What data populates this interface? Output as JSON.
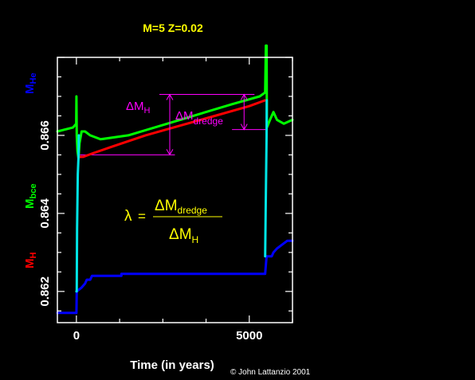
{
  "colors": {
    "background": "#000000",
    "axes": "#ffffff",
    "title": "#ffff00",
    "m_he": "#00ff00",
    "m_he_jump": "#00e5e5",
    "m_bce": "#ff0000",
    "m_h": "#0000ff",
    "annotation": "#ff00ff",
    "formula": "#ffff00"
  },
  "chart_data": {
    "type": "line",
    "title": "M=5 Z=0.02",
    "xlabel": "Time (in years)",
    "credit": "© John Lattanzio 2001",
    "xlim": [
      -550,
      6250
    ],
    "ylim": [
      0.8612,
      0.868
    ],
    "x_ticks": [
      0,
      5000
    ],
    "x_tick_labels": [
      "0",
      "5000"
    ],
    "y_ticks": [
      0.862,
      0.864,
      0.866
    ],
    "y_tick_labels": [
      "0.862",
      "0.864",
      "0.866"
    ],
    "ylabels": [
      {
        "main": "M",
        "sub": "He",
        "color": "#0000ff"
      },
      {
        "main": "M",
        "sub": "bce",
        "color": "#00ff00"
      },
      {
        "main": "M",
        "sub": "H",
        "color": "#ff0000"
      }
    ],
    "series": [
      {
        "color": "#00ff00",
        "points": [
          [
            -550,
            0.8661
          ],
          [
            -100,
            0.8662
          ],
          [
            -5,
            0.8663
          ],
          [
            0,
            0.867
          ],
          [
            10,
            0.866
          ],
          [
            30,
            0.8656
          ],
          [
            60,
            0.8654
          ],
          [
            90,
            0.8658
          ],
          [
            150,
            0.8661
          ],
          [
            250,
            0.8661
          ],
          [
            400,
            0.866
          ],
          [
            700,
            0.8659
          ],
          [
            1500,
            0.866
          ],
          [
            3000,
            0.8664
          ],
          [
            4500,
            0.8668
          ],
          [
            5300,
            0.867
          ],
          [
            5460,
            0.8671
          ],
          [
            5480,
            0.8683
          ],
          [
            5500,
            0.8683
          ],
          [
            5510,
            0.8662
          ],
          [
            5600,
            0.8664
          ],
          [
            5700,
            0.8666
          ],
          [
            5800,
            0.8664
          ],
          [
            6000,
            0.8663
          ],
          [
            6250,
            0.8664
          ]
        ]
      },
      {
        "color": "#ff0000",
        "points": [
          [
            60,
            0.86545
          ],
          [
            200,
            0.86545
          ],
          [
            500,
            0.86555
          ],
          [
            1000,
            0.8657
          ],
          [
            2000,
            0.866
          ],
          [
            3000,
            0.86625
          ],
          [
            4000,
            0.8665
          ],
          [
            5000,
            0.86675
          ],
          [
            5460,
            0.8669
          ]
        ]
      },
      {
        "color": "#0000ff",
        "points": [
          [
            -550,
            0.86145
          ],
          [
            -50,
            0.86145
          ],
          [
            0,
            0.86145
          ],
          [
            10,
            0.862
          ],
          [
            150,
            0.8621
          ],
          [
            250,
            0.8622
          ],
          [
            300,
            0.8623
          ],
          [
            400,
            0.8623
          ],
          [
            450,
            0.8624
          ],
          [
            1300,
            0.8624
          ],
          [
            1300,
            0.86245
          ],
          [
            5460,
            0.86245
          ],
          [
            5500,
            0.8629
          ],
          [
            5650,
            0.8629
          ],
          [
            5700,
            0.863
          ],
          [
            5800,
            0.8631
          ],
          [
            5950,
            0.8632
          ],
          [
            6100,
            0.8633
          ],
          [
            6250,
            0.8633
          ]
        ]
      },
      {
        "color": "#00e5e5",
        "points": [
          [
            0,
            0.862
          ],
          [
            10,
            0.862
          ],
          [
            20,
            0.8636
          ],
          [
            40,
            0.865
          ],
          [
            60,
            0.86545
          ],
          [
            70,
            0.866
          ]
        ]
      },
      {
        "color": "#00e5e5",
        "points": [
          [
            5460,
            0.8629
          ],
          [
            5480,
            0.8645
          ],
          [
            5500,
            0.866
          ],
          [
            5505,
            0.8669
          ]
        ]
      }
    ],
    "annotations": [
      {
        "text": "ΔM",
        "sub": "H",
        "color": "#ff00ff"
      },
      {
        "text": "ΔM",
        "sub": "dredge",
        "color": "#ff00ff"
      }
    ],
    "arrows": [
      {
        "label": "ΔM H",
        "x": 2700,
        "y_from": 0.8655,
        "y_to": 0.86705
      },
      {
        "label": "ΔM dredge",
        "x": 4850,
        "y_from": 0.86615,
        "y_to": 0.86705
      }
    ],
    "guides": [
      {
        "x_from": 100,
        "x_to": 2850,
        "y": 0.8655
      },
      {
        "x_from": 2400,
        "x_to": 5150,
        "y": 0.86705
      },
      {
        "x_from": 4500,
        "x_to": 5500,
        "y": 0.86615
      }
    ],
    "formula": {
      "lhs": "λ",
      "eq": "=",
      "num": "ΔM",
      "num_sub": "dredge",
      "den": "ΔM",
      "den_sub": "H"
    }
  }
}
